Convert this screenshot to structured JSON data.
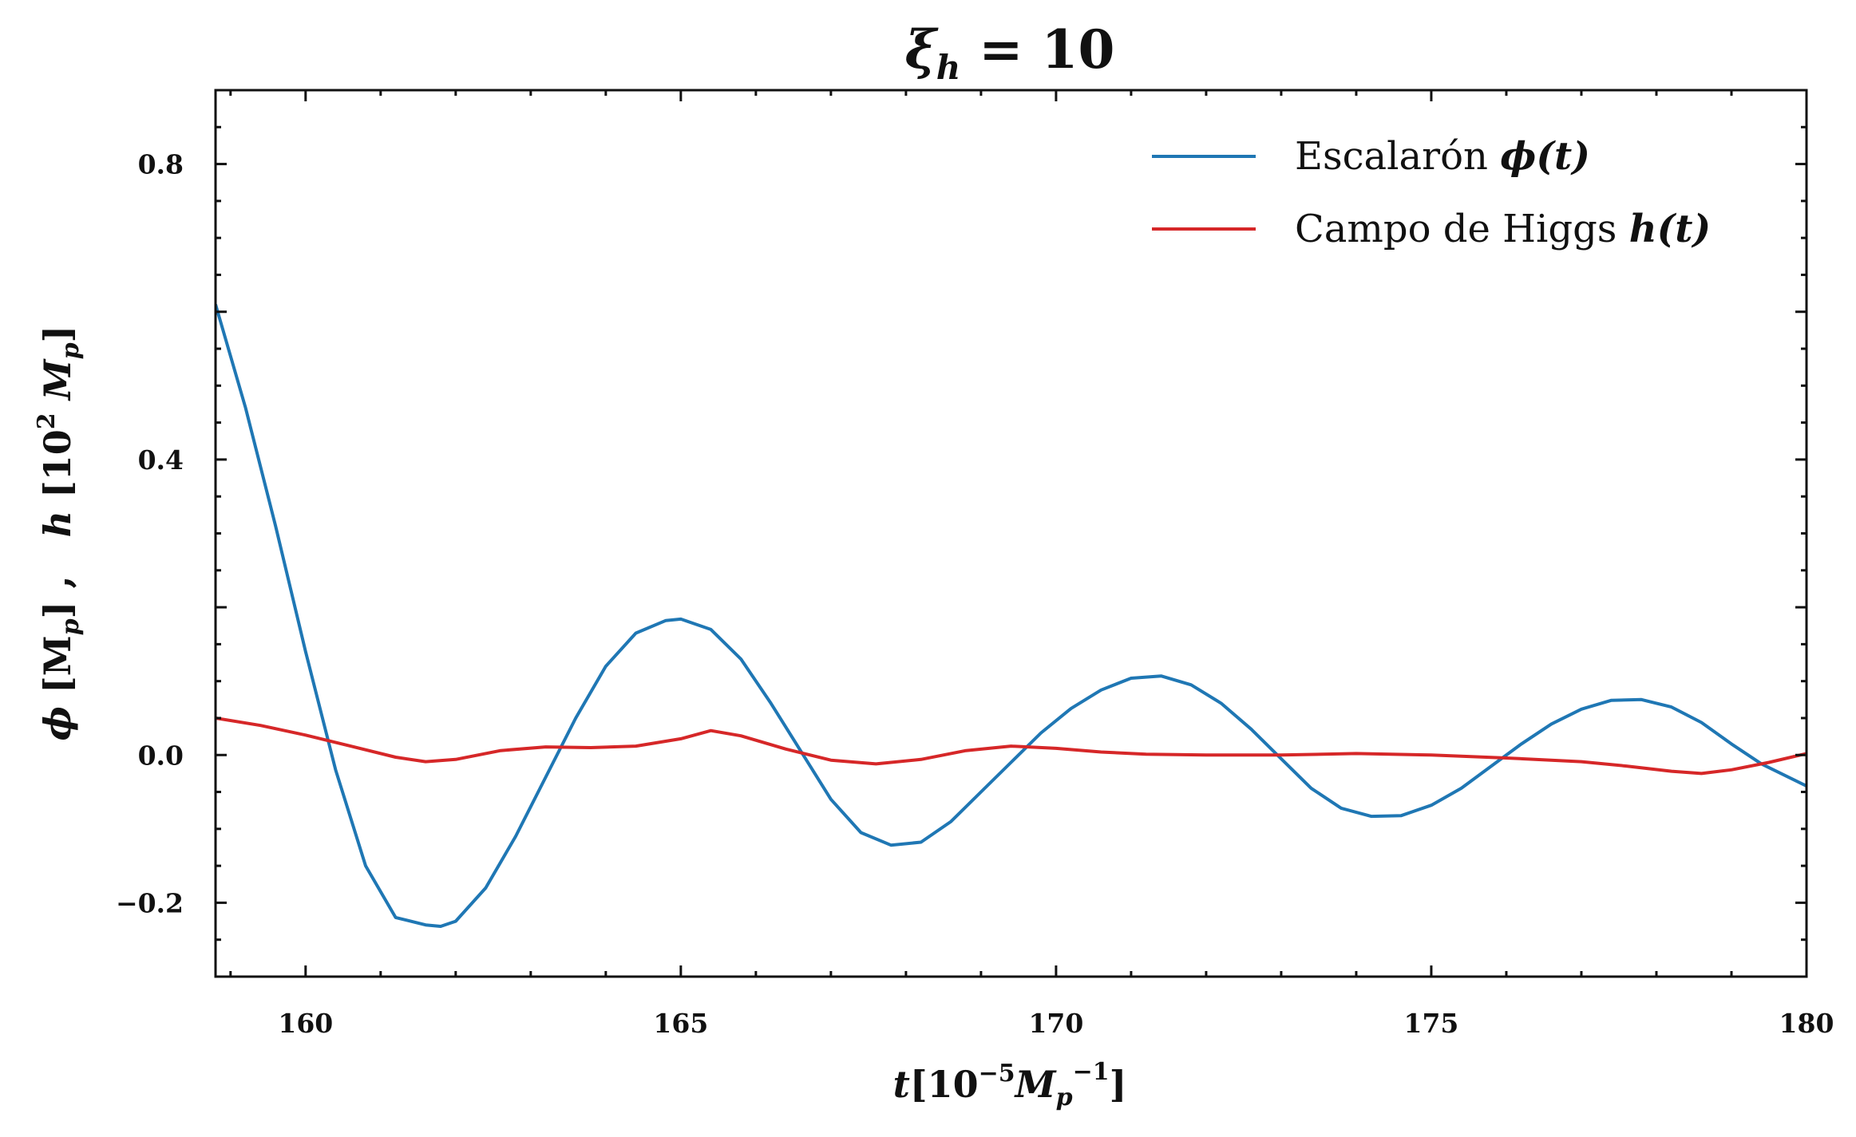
{
  "chart_data": {
    "type": "line",
    "title": "ξh = 10",
    "title_parts": {
      "symbol": "ξ",
      "sub": "h",
      "rest": " = 10"
    },
    "xlabel": "t[10−5Mp−1]",
    "xlabel_parts": {
      "var": "t",
      "open": "[10",
      "exp1": "−5",
      "mid": "M",
      "sub": "p",
      "exp2": "−1",
      "close": "]"
    },
    "ylabel": "ϕ [Mp] ,   h [102 Mp]",
    "ylabel_parts": {
      "phi": "ϕ",
      "b1": " [M",
      "s1": "p",
      "c1": "] ,   ",
      "h": "h",
      "b2": " [10",
      "exp": "2",
      "m2": " M",
      "s2": "p",
      "c2": "]"
    },
    "xlim": [
      158.8,
      180
    ],
    "ylim": [
      -0.3,
      0.9
    ],
    "x_ticks": [
      160,
      165,
      170,
      175,
      180
    ],
    "x_tick_labels": [
      "160",
      "165",
      "170",
      "175",
      "180"
    ],
    "y_ticks": [
      -0.2,
      0.0,
      0.4,
      0.8
    ],
    "y_tick_labels": [
      "−0.2",
      "0.0",
      "0.4",
      "0.8"
    ],
    "grid": false,
    "legend_position": "top-right",
    "series": [
      {
        "name": "Escalarón ϕ(t)",
        "legend_text": "Escalarón ",
        "legend_math": "ϕ(t)",
        "color": "#1f77b4",
        "x": [
          158.8,
          159.2,
          159.6,
          160.0,
          160.4,
          160.8,
          161.2,
          161.6,
          161.8,
          162.0,
          162.4,
          162.8,
          163.2,
          163.6,
          164.0,
          164.4,
          164.8,
          165.0,
          165.4,
          165.8,
          166.2,
          166.6,
          167.0,
          167.4,
          167.8,
          168.2,
          168.6,
          169.0,
          169.4,
          169.8,
          170.2,
          170.6,
          171.0,
          171.4,
          171.8,
          172.2,
          172.6,
          173.0,
          173.4,
          173.8,
          174.2,
          174.6,
          175.0,
          175.4,
          175.8,
          176.2,
          176.6,
          177.0,
          177.4,
          177.8,
          178.2,
          178.6,
          179.0,
          179.4,
          180.0
        ],
        "y": [
          0.61,
          0.47,
          0.31,
          0.14,
          -0.02,
          -0.15,
          -0.22,
          -0.23,
          -0.232,
          -0.225,
          -0.18,
          -0.11,
          -0.03,
          0.05,
          0.12,
          0.165,
          0.182,
          0.184,
          0.17,
          0.13,
          0.07,
          0.005,
          -0.06,
          -0.105,
          -0.122,
          -0.118,
          -0.09,
          -0.05,
          -0.01,
          0.03,
          0.063,
          0.088,
          0.104,
          0.107,
          0.095,
          0.07,
          0.035,
          -0.005,
          -0.045,
          -0.072,
          -0.083,
          -0.082,
          -0.068,
          -0.045,
          -0.015,
          0.015,
          0.042,
          0.062,
          0.074,
          0.075,
          0.065,
          0.044,
          0.015,
          -0.012,
          -0.042
        ]
      },
      {
        "name": "Campo de Higgs h(t)",
        "legend_text": "Campo de Higgs ",
        "legend_math": "h(t)",
        "color": "#d62728",
        "x": [
          158.8,
          159.4,
          160.0,
          160.6,
          161.2,
          161.6,
          162.0,
          162.6,
          163.2,
          163.8,
          164.4,
          165.0,
          165.4,
          165.8,
          166.4,
          167.0,
          167.6,
          168.2,
          168.8,
          169.4,
          170.0,
          170.6,
          171.2,
          172.0,
          173.0,
          174.0,
          175.0,
          176.0,
          177.0,
          177.6,
          178.2,
          178.6,
          179.0,
          179.5,
          180.0
        ],
        "y": [
          0.05,
          0.04,
          0.027,
          0.012,
          -0.003,
          -0.009,
          -0.006,
          0.006,
          0.011,
          0.01,
          0.012,
          0.022,
          0.033,
          0.026,
          0.008,
          -0.007,
          -0.012,
          -0.006,
          0.006,
          0.012,
          0.009,
          0.004,
          0.001,
          0.0,
          0.0,
          0.002,
          0.0,
          -0.004,
          -0.009,
          -0.015,
          -0.022,
          -0.025,
          -0.02,
          -0.01,
          0.002
        ]
      }
    ]
  }
}
